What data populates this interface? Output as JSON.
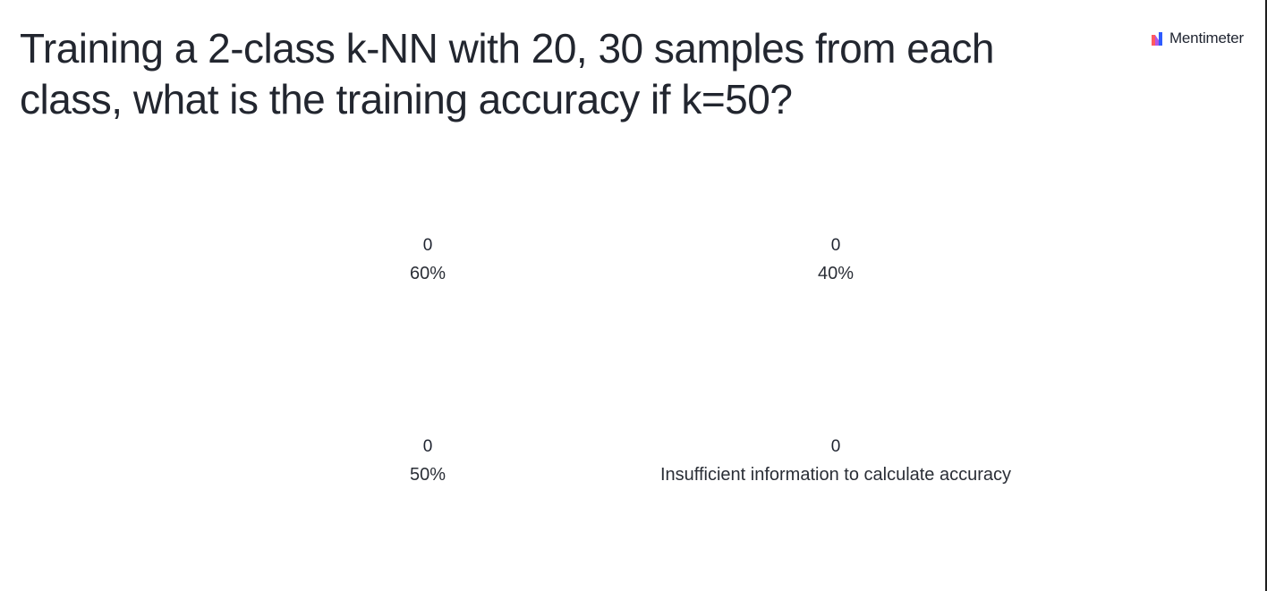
{
  "slide": {
    "question": "Training a 2-class k-NN with 20, 30 samples from each class, what is the training accuracy if k=50?"
  },
  "brand": {
    "name": "Mentimeter",
    "icon": "mentimeter-logo-icon"
  },
  "options": [
    {
      "count": "0",
      "label": "60%"
    },
    {
      "count": "0",
      "label": "40%"
    },
    {
      "count": "0",
      "label": "50%"
    },
    {
      "count": "0",
      "label": "Insufficient information to calculate accuracy"
    }
  ],
  "colors": {
    "text": "#22262f",
    "logo_red": "#ff5a5f",
    "logo_blue": "#2e5bff",
    "logo_purple": "#b455e6"
  }
}
